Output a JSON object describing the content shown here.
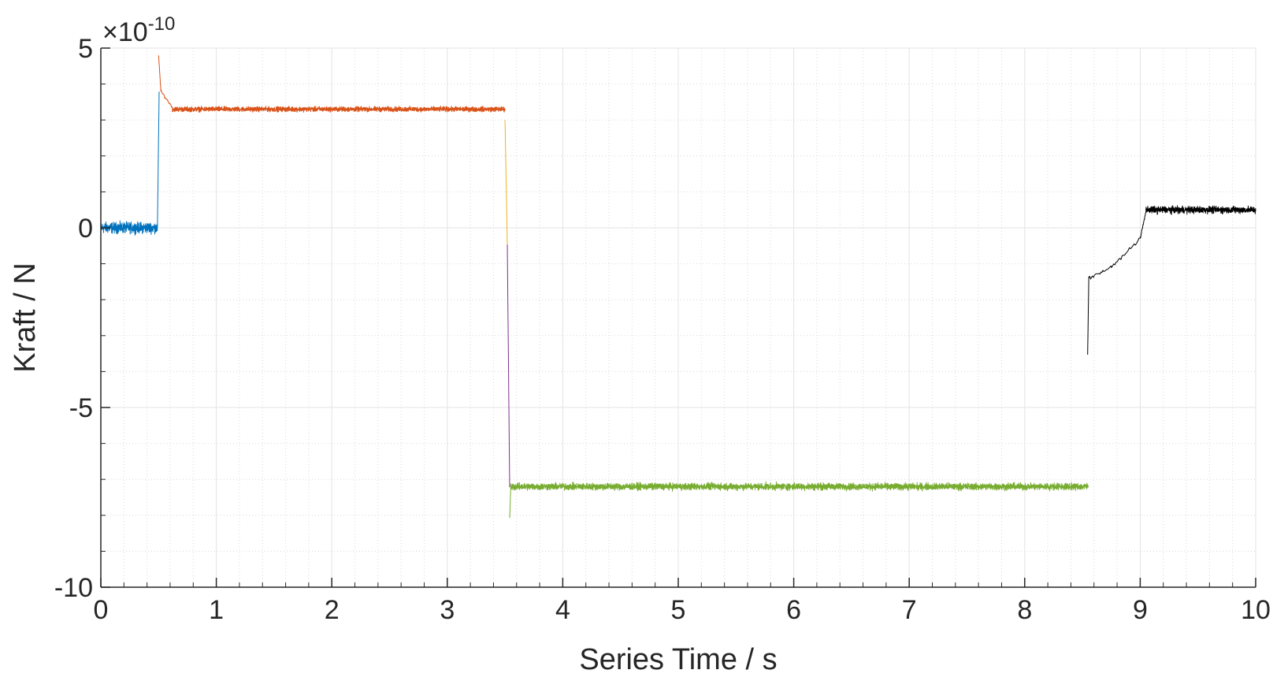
{
  "chart_data": {
    "type": "line",
    "xlabel": "Series Time / s",
    "ylabel": "Kraft / N",
    "y_exponent_label": "×10",
    "y_exponent": "-10",
    "xlim": [
      0,
      10
    ],
    "ylim": [
      -10,
      5
    ],
    "x_ticks": [
      "0",
      "1",
      "2",
      "3",
      "4",
      "5",
      "6",
      "7",
      "8",
      "9",
      "10"
    ],
    "y_ticks": [
      "-10",
      "-5",
      "0",
      "5"
    ],
    "grid": true,
    "minor_grid": true,
    "series": [
      {
        "color": "#0072BD",
        "segments": [
          {
            "x": [
              0.0,
              0.49
            ],
            "level": 0.0,
            "noise": 0.22
          },
          {
            "x": [
              0.49,
              0.505
            ],
            "from": 0.0,
            "to": 3.8
          }
        ]
      },
      {
        "color": "#D95319",
        "segments": [
          {
            "x": [
              0.5,
              0.52
            ],
            "from": 4.8,
            "to": 3.8
          },
          {
            "x": [
              0.52,
              0.62
            ],
            "from": 3.8,
            "to": 3.35
          },
          {
            "x": [
              0.62,
              3.5
            ],
            "level": 3.3,
            "noise": 0.1
          }
        ]
      },
      {
        "color": "#EDB120",
        "segments": [
          {
            "x": [
              3.5,
              3.52
            ],
            "from": 3.0,
            "to": -0.5
          }
        ]
      },
      {
        "color": "#7E2F8E",
        "segments": [
          {
            "x": [
              3.52,
              3.54
            ],
            "from": -0.5,
            "to": -7.2
          }
        ]
      },
      {
        "color": "#77AC30",
        "segments": [
          {
            "x": [
              3.54,
              3.55
            ],
            "from": -8.1,
            "to": -7.2
          },
          {
            "x": [
              3.55,
              8.55
            ],
            "level": -7.2,
            "noise": 0.14
          }
        ]
      },
      {
        "color": "#000000",
        "segments": [
          {
            "x": [
              8.545,
              8.555
            ],
            "from": -3.5,
            "to": -1.4
          },
          {
            "x": [
              8.555,
              8.75
            ],
            "from": -1.4,
            "to": -1.1
          },
          {
            "x": [
              8.75,
              9.0
            ],
            "from": -1.1,
            "to": -0.3
          },
          {
            "x": [
              9.0,
              9.05
            ],
            "from": -0.3,
            "to": 0.45
          },
          {
            "x": [
              9.05,
              10.0
            ],
            "level": 0.5,
            "noise": 0.14
          }
        ]
      }
    ]
  }
}
